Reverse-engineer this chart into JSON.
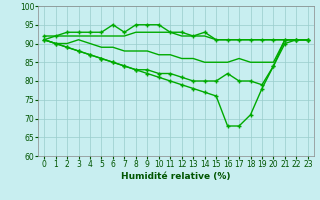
{
  "xlabel": "Humidité relative (%)",
  "x": [
    0,
    1,
    2,
    3,
    4,
    5,
    6,
    7,
    8,
    9,
    10,
    11,
    12,
    13,
    14,
    15,
    16,
    17,
    18,
    19,
    20,
    21,
    22,
    23
  ],
  "line_top": [
    92,
    92,
    93,
    93,
    93,
    93,
    95,
    93,
    95,
    95,
    95,
    93,
    93,
    92,
    93,
    91,
    91,
    91,
    91,
    91,
    91,
    91,
    91,
    91
  ],
  "line_mid1": [
    91,
    92,
    92,
    92,
    92,
    92,
    92,
    92,
    93,
    93,
    93,
    93,
    92,
    92,
    92,
    91,
    91,
    91,
    91,
    91,
    91,
    91,
    91,
    91
  ],
  "line_mid2": [
    91,
    90,
    90,
    91,
    90,
    89,
    89,
    88,
    88,
    88,
    87,
    87,
    86,
    86,
    85,
    85,
    85,
    86,
    85,
    85,
    85,
    91,
    91,
    91
  ],
  "line_low1": [
    91,
    90,
    89,
    88,
    87,
    86,
    85,
    84,
    83,
    83,
    82,
    82,
    81,
    80,
    80,
    80,
    82,
    80,
    80,
    79,
    84,
    91,
    91,
    91
  ],
  "line_low2": [
    91,
    90,
    89,
    88,
    87,
    86,
    85,
    84,
    83,
    82,
    81,
    80,
    79,
    78,
    77,
    76,
    68,
    68,
    71,
    78,
    84,
    90,
    91,
    91
  ],
  "bg_color": "#c8eef0",
  "grid_color": "#99cccc",
  "line_color": "#00aa00",
  "ylim": [
    60,
    100
  ],
  "xlim_min": -0.5,
  "xlim_max": 23.5,
  "yticks": [
    60,
    65,
    70,
    75,
    80,
    85,
    90,
    95,
    100
  ],
  "xticks": [
    0,
    1,
    2,
    3,
    4,
    5,
    6,
    7,
    8,
    9,
    10,
    11,
    12,
    13,
    14,
    15,
    16,
    17,
    18,
    19,
    20,
    21,
    22,
    23
  ],
  "tick_fontsize": 5.5,
  "xlabel_fontsize": 6.5
}
